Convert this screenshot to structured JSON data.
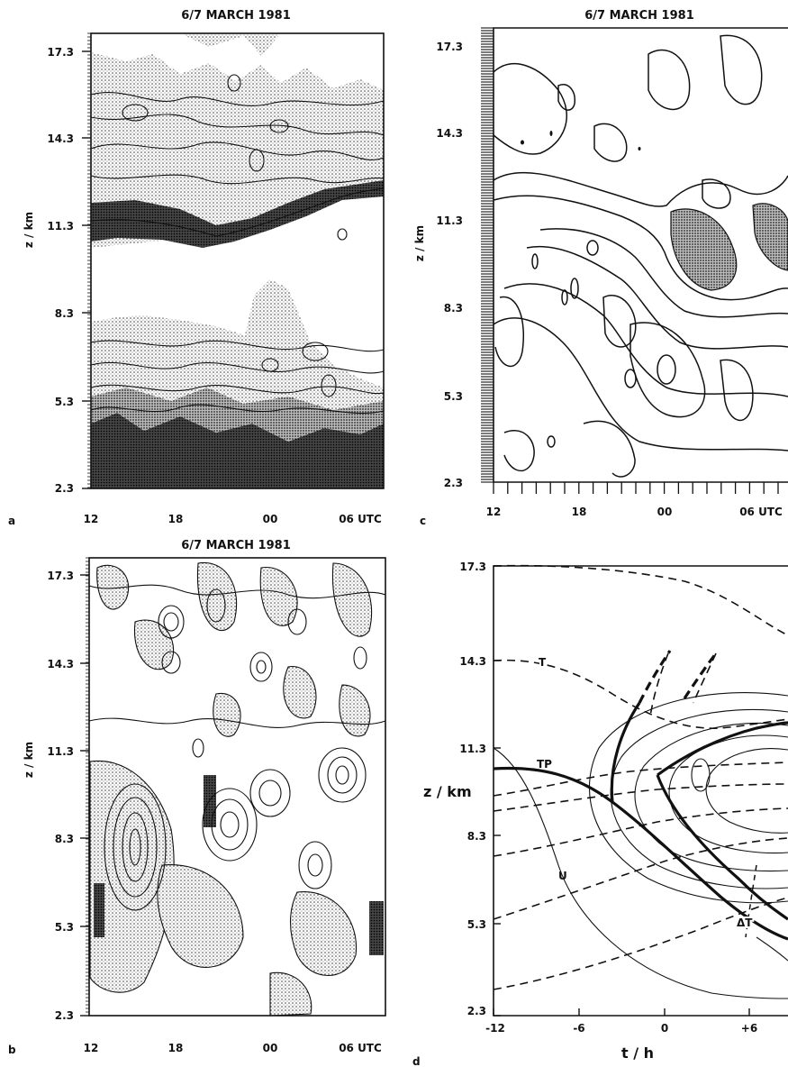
{
  "panels": {
    "a": {
      "letter": "a",
      "title": "6/7 MARCH 1981",
      "ylabel": "z / km",
      "yticks": [
        "17.3",
        "14.3",
        "11.3",
        "8.3",
        "5.3",
        "2.3"
      ],
      "xticks": [
        "12",
        "18",
        "00",
        "06 UTC"
      ]
    },
    "b": {
      "letter": "b",
      "title": "6/7 MARCH 1981",
      "ylabel": "z / km",
      "yticks": [
        "17.3",
        "14.3",
        "11.3",
        "8.3",
        "5.3",
        "2.3"
      ],
      "xticks": [
        "12",
        "18",
        "00",
        "06 UTC"
      ]
    },
    "c": {
      "letter": "c",
      "title": "6/7 MARCH 1981",
      "ylabel": "z / km",
      "yticks": [
        "17.3",
        "14.3",
        "11.3",
        "8.3",
        "5.3",
        "2.3"
      ],
      "xticks": [
        "12",
        "18",
        "00",
        "06 UTC"
      ]
    },
    "d": {
      "letter": "d",
      "ylabel": "z / km",
      "xlabel": "t / h",
      "yticks": [
        "17.3",
        "14.3",
        "11.3",
        "8.3",
        "5.3",
        "2.3"
      ],
      "xticks": [
        "-12",
        "-6",
        "0",
        "+6"
      ],
      "curve_labels": {
        "tropopause": "TP",
        "temperature": "T",
        "wind": "U",
        "anomaly": "ΔT"
      }
    }
  }
}
